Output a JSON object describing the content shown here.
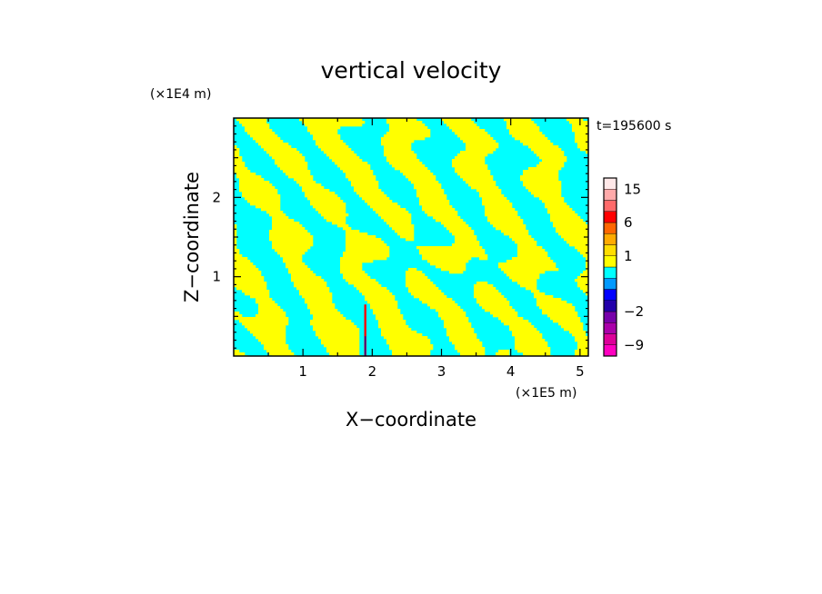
{
  "chart_data": {
    "type": "heatmap",
    "title": "vertical velocity",
    "xlabel": "X−coordinate",
    "ylabel": "Z−coordinate",
    "x_unit_label": "(×1E5 m)",
    "y_unit_label": "(×1E4 m)",
    "time_label": "t=195600 s",
    "xlim": [
      0,
      5.12
    ],
    "ylim": [
      0,
      3.0
    ],
    "x_ticks": [
      1,
      2,
      3,
      4,
      5
    ],
    "y_ticks": [
      1,
      2
    ],
    "x_tick_labels": [
      "1",
      "2",
      "3",
      "4",
      "5"
    ],
    "y_tick_labels": [
      "1",
      "2"
    ],
    "field_colors": {
      "positive": "#ffff00",
      "negative": "#00ffff",
      "strong_positive": "#ff0000",
      "strong_negative": "#0000aa"
    },
    "colorbar": {
      "levels": [
        -12,
        -9,
        -6,
        -4,
        -2,
        -1,
        -0.5,
        0,
        0.5,
        1,
        2,
        4,
        6,
        9,
        12,
        15,
        20
      ],
      "colors": [
        "#ff00c0",
        "#dd0099",
        "#aa00aa",
        "#7700aa",
        "#2200aa",
        "#0000ff",
        "#0099ff",
        "#00ffff",
        "#ffff00",
        "#ffdd00",
        "#ffaa00",
        "#ff6600",
        "#ff0000",
        "#ff6a6a",
        "#ffaaaa",
        "#ffe8e8"
      ],
      "tick_values": [
        -9,
        -2,
        1,
        6,
        15
      ],
      "tick_labels": [
        "−9",
        "−2",
        "1",
        "6",
        "15"
      ]
    }
  }
}
